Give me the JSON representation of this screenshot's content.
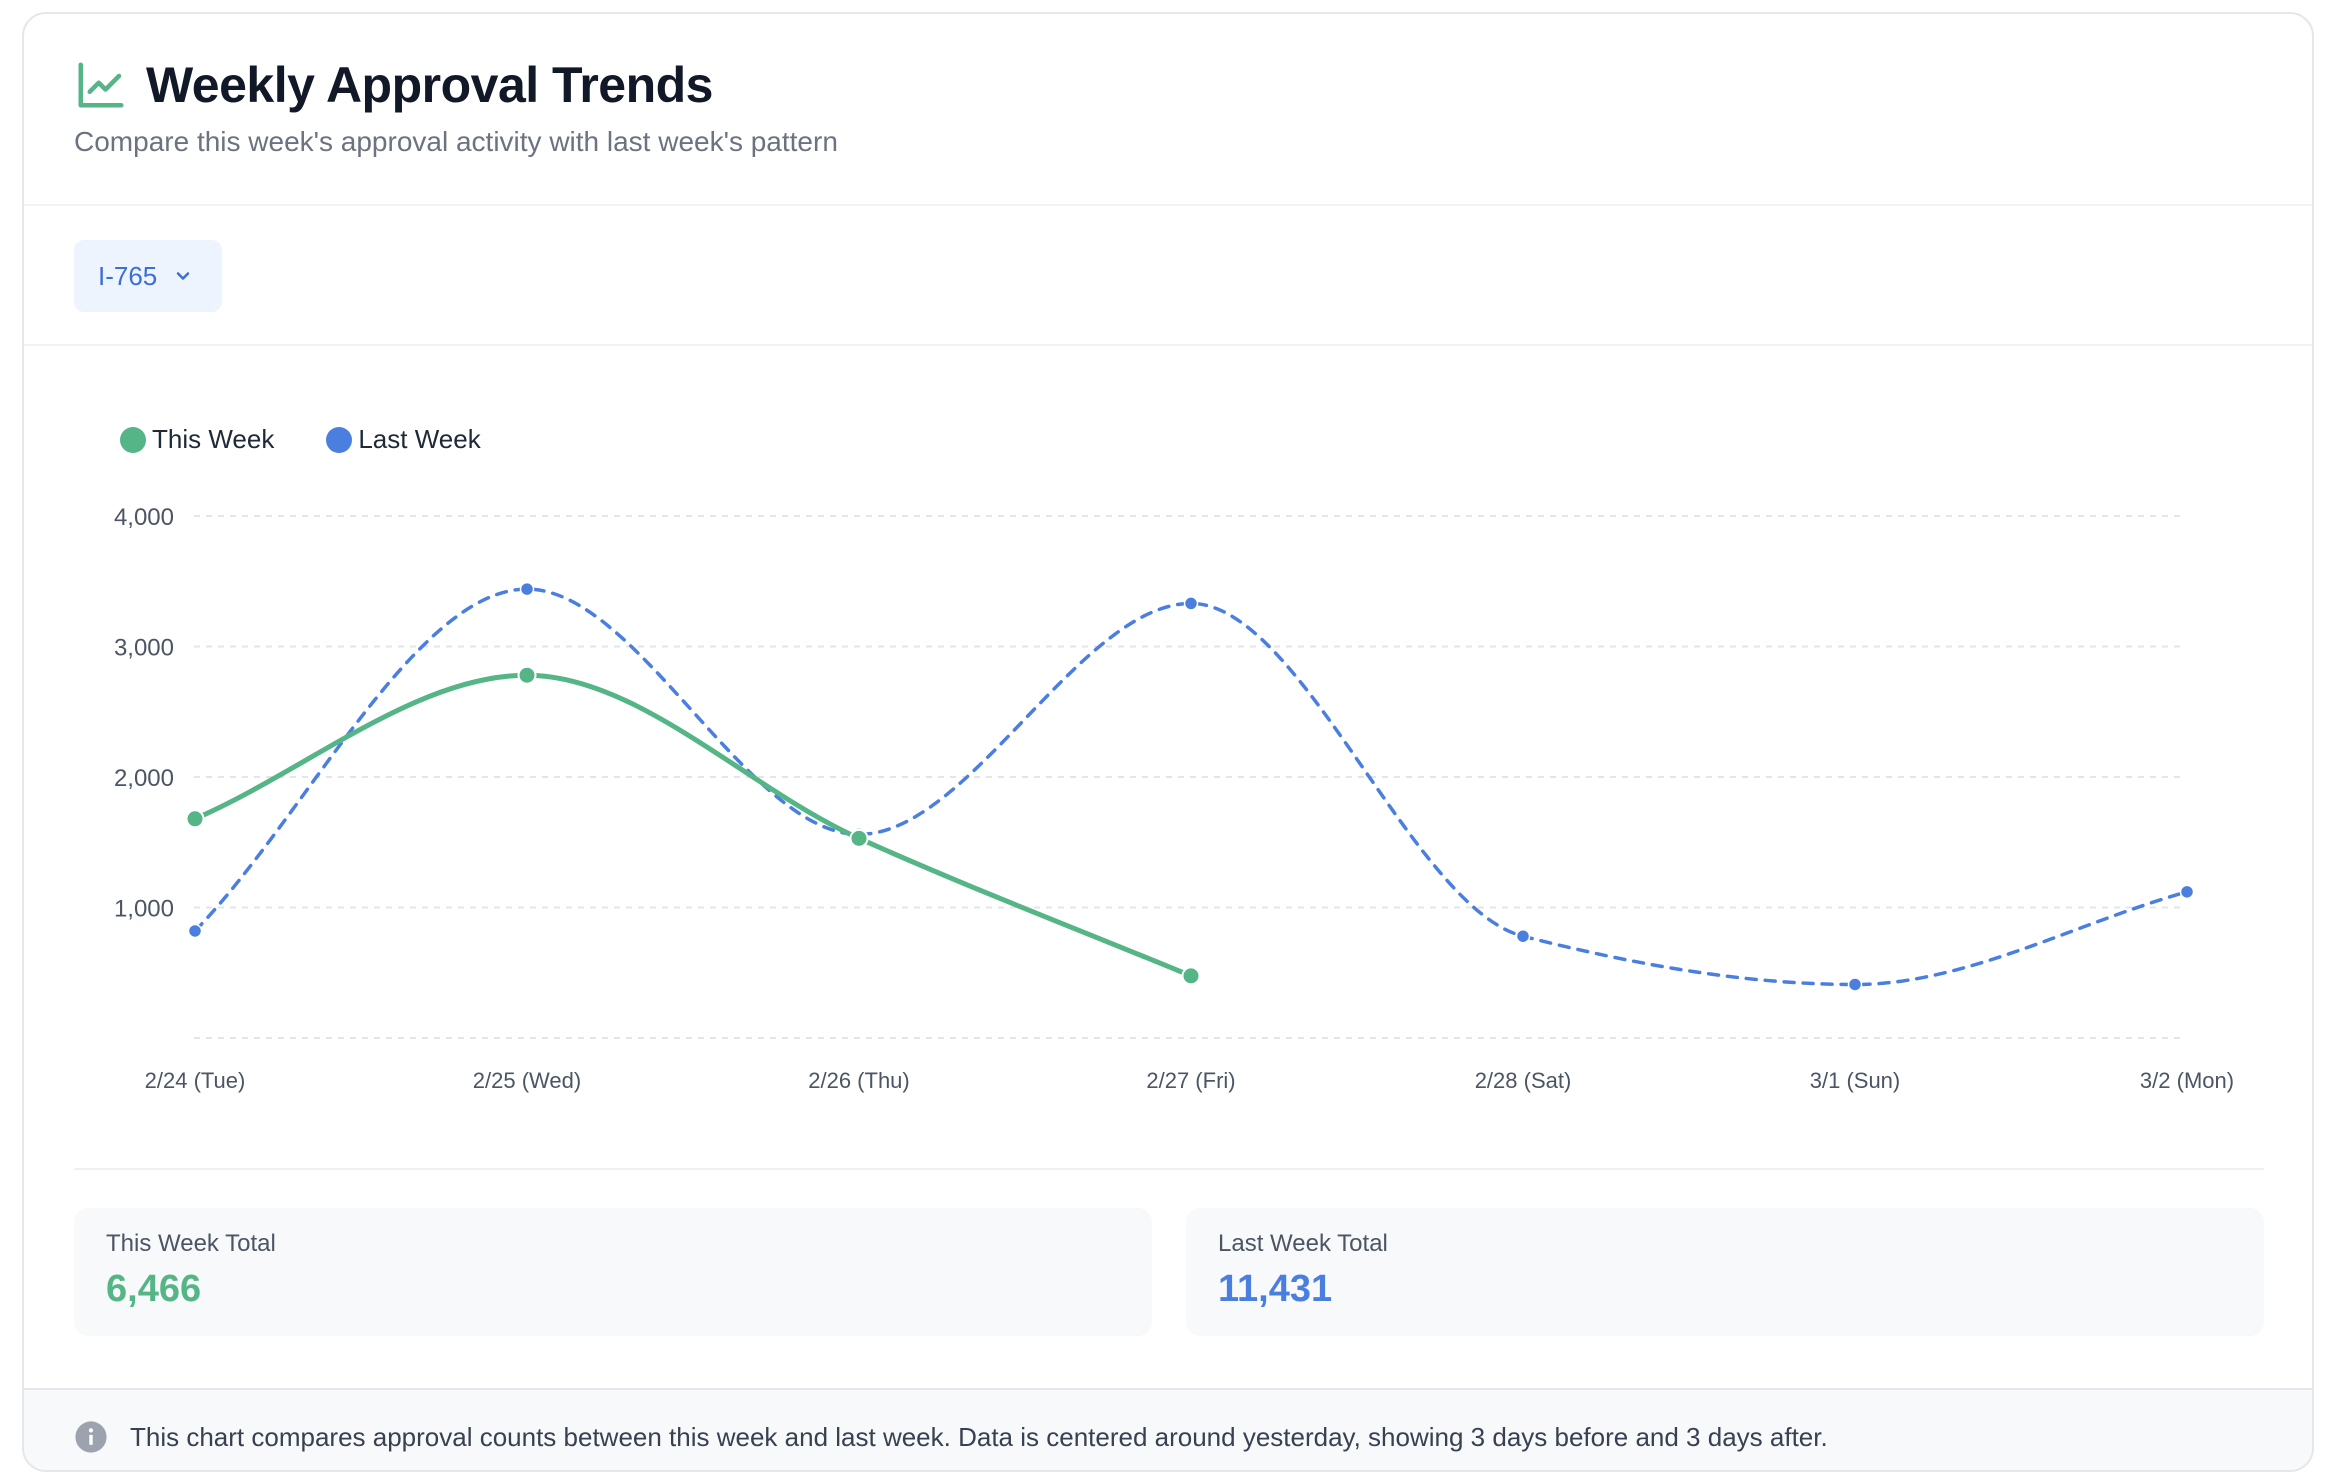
{
  "header": {
    "title": "Weekly Approval Trends",
    "subtitle": "Compare this week's approval activity with last week's pattern",
    "title_icon": "line-chart-icon",
    "accent_color": "#55b586"
  },
  "filter": {
    "selected": "I-765",
    "icon": "chevron-down-icon"
  },
  "chart_data": {
    "type": "line",
    "categories": [
      "2/24 (Tue)",
      "2/25 (Wed)",
      "2/26 (Thu)",
      "2/27 (Fri)",
      "2/28 (Sat)",
      "3/1 (Sun)",
      "3/2 (Mon)"
    ],
    "series": [
      {
        "name": "This Week",
        "values": [
          1680,
          2780,
          1530,
          476,
          null,
          null,
          null
        ],
        "color": "#55b586",
        "style": "solid"
      },
      {
        "name": "Last Week",
        "values": [
          820,
          3440,
          1560,
          3330,
          780,
          410,
          1120
        ],
        "color": "#4a7fe0",
        "style": "dashed"
      }
    ],
    "yticks": [
      1000,
      2000,
      3000,
      4000
    ],
    "ytick_labels": [
      "1,000",
      "2,000",
      "3,000",
      "4,000"
    ],
    "ylim": [
      0,
      4000
    ],
    "grid": true,
    "legend_position": "top-left"
  },
  "totals": {
    "this_week": {
      "label": "This Week Total",
      "value": "6,466",
      "color": "#55b586"
    },
    "last_week": {
      "label": "Last Week Total",
      "value": "11,431",
      "color": "#4a7fe0"
    }
  },
  "footer": {
    "icon": "info-icon",
    "text": "This chart compares approval counts between this week and last week. Data is centered around yesterday, showing 3 days before and 3 days after."
  }
}
